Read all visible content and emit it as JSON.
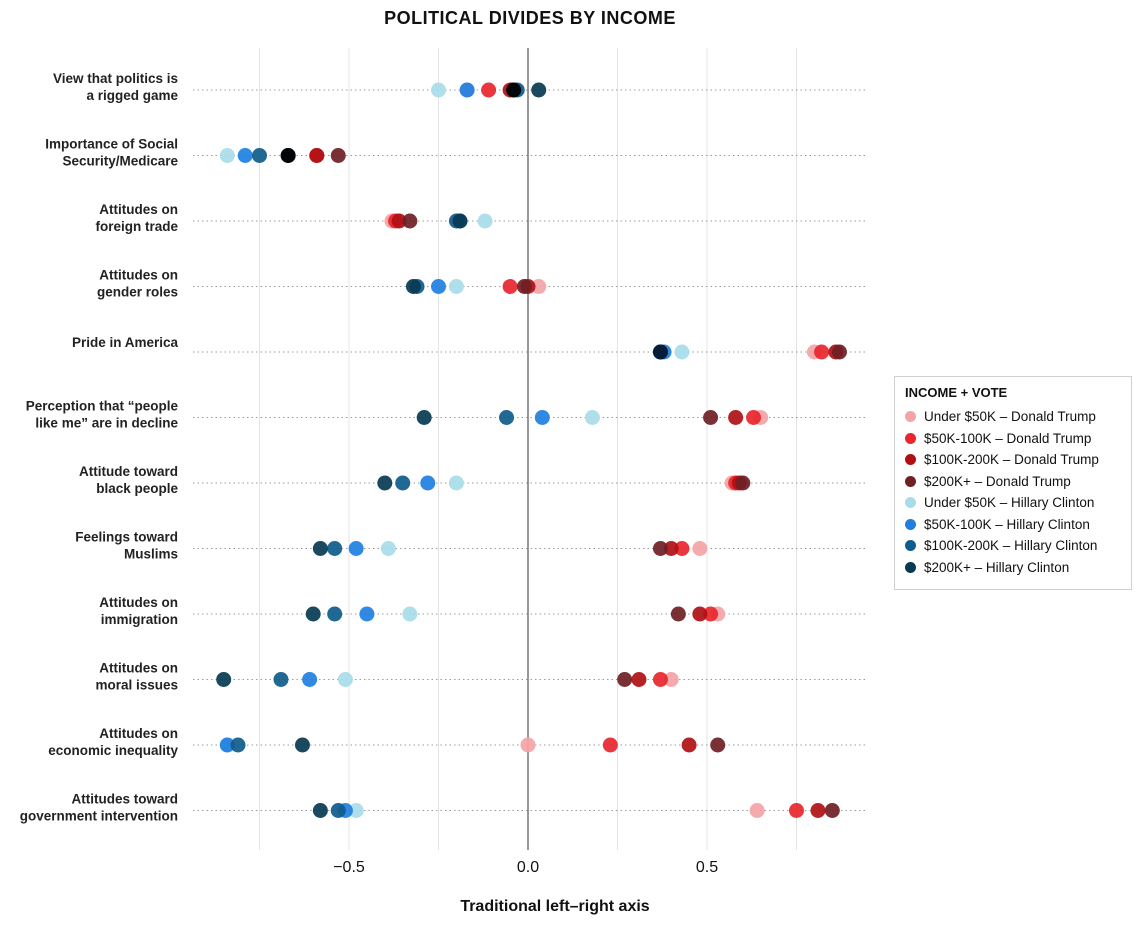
{
  "chart_data": {
    "type": "scatter",
    "title": "POLITICAL DIVIDES BY INCOME",
    "xlabel": "Traditional left–right axis",
    "ylabel": "",
    "xlim": [
      -0.95,
      0.95
    ],
    "xticks": [
      -0.5,
      0.0,
      0.5
    ],
    "xtick_labels": [
      "−0.5",
      "0.0",
      "0.5"
    ],
    "grid": true,
    "legend_title": "INCOME + VOTE",
    "legend_position": "right",
    "categories": [
      "View that politics is\na rigged game",
      "Importance of Social\nSecurity/Medicare",
      "Attitudes on\nforeign trade",
      "Attitudes on\ngender roles",
      "Pride in America",
      "Perception that “people\nlike me” are in decline",
      "Attitude toward\nblack people",
      "Feelings toward\nMuslims",
      "Attitudes on\nimmigration",
      "Attitudes on\nmoral issues",
      "Attitudes on\neconomic inequality",
      "Attitudes toward\ngovernment intervention"
    ],
    "series": [
      {
        "name": "Under $50K – Donald Trump",
        "color": "#f4a3a6",
        "values": [
          -0.17,
          -0.67,
          -0.38,
          0.03,
          0.8,
          0.65,
          0.57,
          0.48,
          0.53,
          0.4,
          0.0,
          0.64
        ]
      },
      {
        "name": "$50K-100K – Donald Trump",
        "color": "#e8262c",
        "values": [
          -0.11,
          -0.59,
          -0.37,
          -0.05,
          0.82,
          0.63,
          0.58,
          0.43,
          0.51,
          0.37,
          0.23,
          0.75
        ]
      },
      {
        "name": "$100K-200K – Donald Trump",
        "color": "#b01015",
        "values": [
          -0.05,
          -0.59,
          -0.36,
          0.0,
          0.86,
          0.58,
          0.59,
          0.4,
          0.48,
          0.31,
          0.45,
          0.81
        ]
      },
      {
        "name": "$200K+ – Donald Trump",
        "color": "#6e2025",
        "values": [
          -0.04,
          -0.53,
          -0.33,
          -0.01,
          0.87,
          0.51,
          0.6,
          0.37,
          0.42,
          0.27,
          0.53,
          0.85
        ]
      },
      {
        "name": "Under $50K – Hillary Clinton",
        "color": "#a8dce8",
        "values": [
          -0.25,
          -0.84,
          -0.12,
          -0.2,
          0.43,
          0.18,
          -0.2,
          -0.39,
          -0.33,
          -0.51,
          -0.84,
          -0.48
        ]
      },
      {
        "name": "$50K-100K – Hillary Clinton",
        "color": "#1e7fe0",
        "values": [
          -0.17,
          -0.79,
          -0.19,
          -0.25,
          0.38,
          0.04,
          -0.28,
          -0.48,
          -0.45,
          -0.61,
          -0.84,
          -0.51
        ]
      },
      {
        "name": "$100K-200K – Hillary Clinton",
        "color": "#0f5b8c",
        "values": [
          -0.03,
          -0.75,
          -0.2,
          -0.31,
          0.37,
          -0.06,
          -0.35,
          -0.54,
          -0.54,
          -0.69,
          -0.81,
          -0.53
        ]
      },
      {
        "name": "$200K+ – Hillary Clinton",
        "color": "#083a52",
        "values": [
          0.03,
          -0.67,
          -0.19,
          -0.32,
          0.37,
          -0.29,
          -0.4,
          -0.58,
          -0.6,
          -0.85,
          -0.63,
          -0.58
        ]
      }
    ],
    "extra_points": [
      {
        "category_index": 0,
        "value": -0.04,
        "color": "#000000"
      },
      {
        "category_index": 1,
        "value": -0.67,
        "color": "#000000"
      },
      {
        "category_index": 4,
        "value": 0.37,
        "color": "#061a36"
      }
    ]
  }
}
